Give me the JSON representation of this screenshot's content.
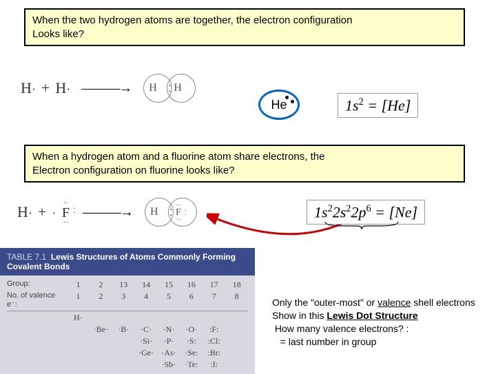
{
  "question1": "When the two hydrogen atoms are together, the electron configuration\nLooks like?",
  "question2": "When a hydrogen atom and a fluorine atom share electrons, the\nElectron configuration on fluorine looks like?",
  "reaction1": {
    "lhs1": "H",
    "plus": "+",
    "lhs2": "H",
    "prod_l": "H",
    "prod_r": "H"
  },
  "reaction2": {
    "lhs1": "H",
    "plus": "+",
    "lhs2": "F",
    "prod_l": "H",
    "prod_r": "F"
  },
  "he_symbol": "He",
  "config1_html": "1<i>s</i><sup>2</sup> = [He]",
  "config2_html": "1<i>s</i><sup>2</sup>2<i>s</i><sup>2</sup>2<i>p</i><sup>6</sup> = [<i>Ne</i>]",
  "table": {
    "title_num": "TABLE 7.1",
    "title": "Lewis Structures of Atoms Commonly Forming Covalent Bonds",
    "row_group_label": "Group:",
    "row_valence_label": "No. of valence e⁻:",
    "groups": [
      "1",
      "2",
      "13",
      "14",
      "15",
      "16",
      "17",
      "18"
    ],
    "valence": [
      "1",
      "2",
      "3",
      "4",
      "5",
      "6",
      "7",
      "8"
    ],
    "elements": [
      [
        "H·",
        "",
        "",
        "",
        "",
        "",
        "",
        ""
      ],
      [
        "",
        "·Be·",
        "·B·",
        "·C·",
        "·N·",
        "·O·",
        ":F:",
        ""
      ],
      [
        "",
        "",
        "",
        "·Si·",
        "·P·",
        "·S:",
        ":Cl:",
        ""
      ],
      [
        "",
        "",
        "",
        "·Ge·",
        "·As·",
        "·Se:",
        ":Br:",
        ""
      ],
      [
        "",
        "",
        "",
        "",
        "·Sb·",
        "·Te:",
        ":I:",
        ""
      ]
    ]
  },
  "note": {
    "line1a": "Only the \"outer-most\" or ",
    "valence": "valence",
    "line1b": " shell electrons Show in this ",
    "lds": "Lewis Dot Structure",
    "line2": "How many valence electrons? :",
    "line3": "= last number in group"
  },
  "colors": {
    "box_bg": "#ffffcc",
    "oval_border": "#0066cc",
    "arrow": "#cc0000",
    "table_header": "#3a4a8a"
  }
}
